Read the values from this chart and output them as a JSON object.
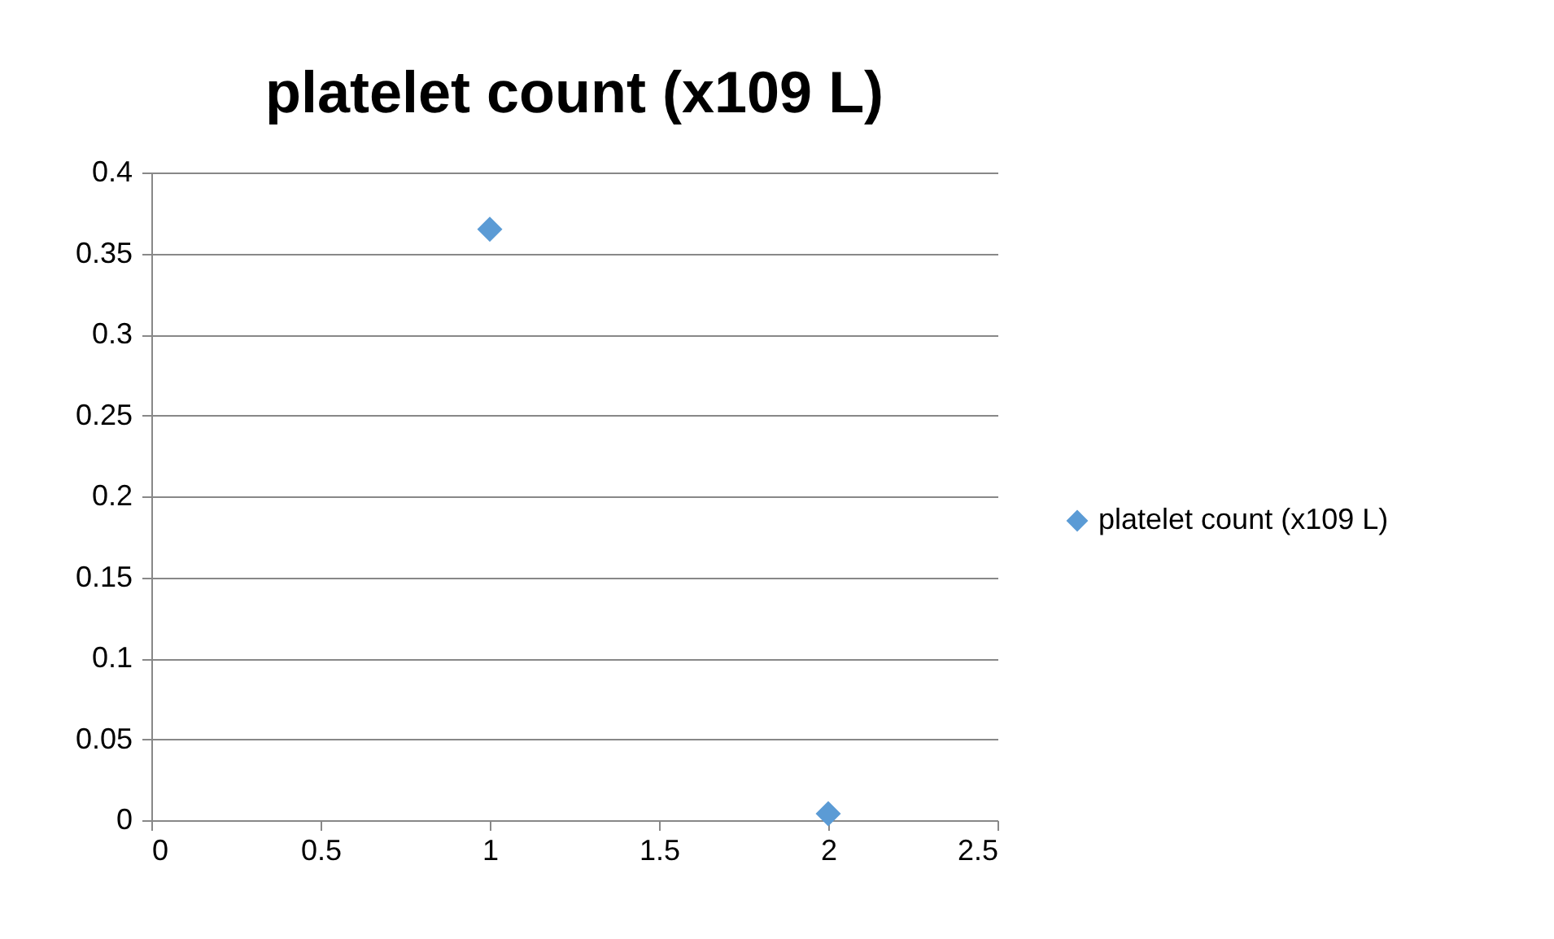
{
  "chart_data": {
    "type": "scatter",
    "title": "platelet count (x109 L)",
    "x": [
      1,
      2
    ],
    "series": [
      {
        "name": "platelet count (x109 L)",
        "color": "#5b9bd5",
        "values": [
          0.365,
          0.004
        ]
      }
    ],
    "xlim": [
      0,
      2.5
    ],
    "xticks": [
      0,
      0.5,
      1,
      1.5,
      2,
      2.5
    ],
    "ylim": [
      0,
      0.4
    ],
    "yticks": [
      0,
      0.05,
      0.1,
      0.15,
      0.2,
      0.25,
      0.3,
      0.35,
      0.4
    ],
    "grid": "y",
    "legend": "right",
    "marker": "diamond"
  }
}
